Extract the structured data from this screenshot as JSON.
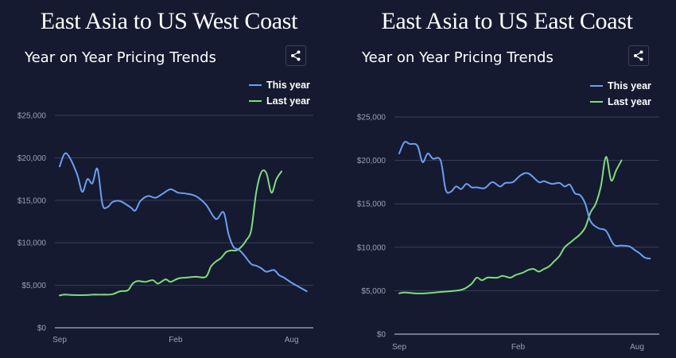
{
  "panels": [
    {
      "heading": "East Asia to US West Coast",
      "chart_data": {
        "type": "line",
        "title": "Year on Year Pricing Trends",
        "x_ticks": [
          "Sep",
          "Feb",
          "Aug"
        ],
        "y_ticks": [
          "$0",
          "$5,000",
          "$10,000",
          "$15,000",
          "$20,000",
          "$25,000"
        ],
        "ylim": [
          0,
          25000
        ],
        "xlim": [
          0,
          50
        ],
        "legend": [
          "This year",
          "Last year"
        ],
        "legend_position": "top-right",
        "series": [
          {
            "name": "This year",
            "color": "#6b9ff2",
            "x": [
              0,
              1,
              2,
              3.5,
              4.5,
              5.5,
              6.5,
              7.5,
              8.5,
              9.5,
              10.5,
              12,
              14,
              15,
              16,
              17.5,
              19,
              20.5,
              22,
              23.5,
              25,
              27,
              29,
              31,
              32.5,
              33.5,
              34.5,
              35.5,
              36.5,
              38,
              39,
              40,
              41,
              42.5,
              43.5,
              44.5,
              46,
              47.5,
              49
            ],
            "y": [
              19000,
              20500,
              20000,
              18000,
              16000,
              17500,
              17000,
              18700,
              14500,
              14200,
              14800,
              14900,
              14200,
              13800,
              14900,
              15500,
              15300,
              15800,
              16300,
              15900,
              15800,
              15500,
              14500,
              12800,
              13600,
              11000,
              9500,
              9200,
              8600,
              7500,
              7300,
              7000,
              6600,
              6800,
              6200,
              5900,
              5300,
              4800,
              4300
            ]
          },
          {
            "name": "Last year",
            "color": "#7fdc7d",
            "x": [
              0,
              1,
              3,
              5,
              7,
              9,
              10.5,
              12,
              13.5,
              14.5,
              15.5,
              17,
              18.5,
              19.5,
              21,
              22,
              23.5,
              25,
              27,
              29,
              30,
              31,
              32,
              33,
              34,
              35,
              36,
              37,
              38,
              39,
              40,
              41,
              42,
              43,
              44
            ],
            "y": [
              3800,
              3900,
              3850,
              3850,
              3900,
              3900,
              3950,
              4300,
              4400,
              5200,
              5500,
              5400,
              5600,
              5200,
              5700,
              5400,
              5800,
              5900,
              6000,
              6000,
              7200,
              7800,
              8200,
              8900,
              9100,
              9100,
              9500,
              10300,
              11500,
              16000,
              18300,
              18200,
              15900,
              17500,
              18400
            ]
          }
        ]
      }
    },
    {
      "heading": "East Asia to US East Coast",
      "chart_data": {
        "type": "line",
        "title": "Year on Year Pricing Trends",
        "x_ticks": [
          "Sep",
          "Feb",
          "Aug"
        ],
        "y_ticks": [
          "$0",
          "$5,000",
          "$10,000",
          "$15,000",
          "$20,000",
          "$25,000"
        ],
        "ylim": [
          0,
          25000
        ],
        "xlim": [
          0,
          50
        ],
        "legend": [
          "This year",
          "Last year"
        ],
        "legend_position": "top-right",
        "series": [
          {
            "name": "This year",
            "color": "#6b9ff2",
            "x": [
              0,
              1,
              2,
              3.5,
              4.5,
              5.5,
              6.5,
              8,
              9,
              10,
              11,
              12,
              13,
              14,
              15,
              16.5,
              18,
              19.5,
              20.5,
              22,
              23.5,
              25,
              27,
              28,
              29.5,
              31,
              32,
              33,
              34,
              35,
              36,
              37,
              38.5,
              40,
              41.5,
              43,
              44.5,
              45.5,
              46.5,
              47.5,
              48.5
            ],
            "y": [
              20800,
              22100,
              21900,
              21700,
              19800,
              20800,
              20200,
              20000,
              16600,
              16400,
              17000,
              16700,
              17300,
              16900,
              16900,
              16800,
              17500,
              17000,
              17400,
              17500,
              18300,
              18500,
              17500,
              17600,
              17300,
              17400,
              17000,
              17200,
              16200,
              16000,
              15000,
              13000,
              12200,
              11900,
              10300,
              10200,
              10100,
              9700,
              9300,
              8800,
              8700
            ]
          },
          {
            "name": "Last year",
            "color": "#7fdc7d",
            "x": [
              0,
              1,
              3,
              5,
              7,
              9,
              11,
              12.5,
              14,
              15,
              16,
              17,
              18,
              19,
              20,
              21.5,
              22.5,
              24,
              25,
              26,
              27,
              28,
              29,
              30,
              31,
              32,
              33,
              34,
              35,
              36,
              37,
              38,
              39,
              40,
              41,
              42,
              43
            ],
            "y": [
              4700,
              4800,
              4700,
              4700,
              4800,
              4900,
              5000,
              5200,
              5800,
              6500,
              6200,
              6500,
              6500,
              6500,
              6700,
              6500,
              6800,
              7100,
              7400,
              7500,
              7200,
              7500,
              7800,
              8400,
              9000,
              10000,
              10500,
              11000,
              11500,
              12300,
              14000,
              15000,
              17000,
              20400,
              17700,
              18900,
              20000
            ]
          }
        ]
      }
    }
  ]
}
